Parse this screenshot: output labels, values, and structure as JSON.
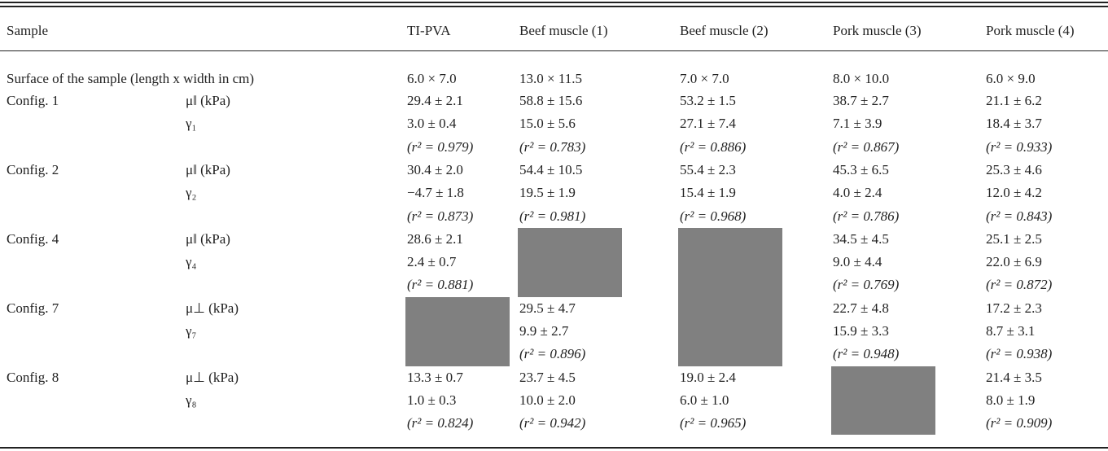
{
  "table": {
    "header": [
      "Sample",
      "TI-PVA",
      "Beef muscle (1)",
      "Beef muscle (2)",
      "Pork muscle (3)",
      "Pork muscle (4)"
    ],
    "surface": {
      "label": "Surface of the sample (length x width in cm)",
      "values": [
        "6.0 × 7.0",
        "13.0 × 11.5",
        "7.0 × 7.0",
        "8.0 × 10.0",
        "6.0 × 9.0"
      ]
    },
    "configs": [
      {
        "label": "Config. 1",
        "params": [
          "μ‖ (kPa)",
          "γ₁"
        ],
        "cells": [
          {
            "mu": "29.4 ± 2.1",
            "gamma": "3.0 ± 0.4",
            "r2": "(r² = 0.979)"
          },
          {
            "mu": "58.8 ± 15.6",
            "gamma": "15.0 ± 5.6",
            "r2": "(r² = 0.783)"
          },
          {
            "mu": "53.2 ± 1.5",
            "gamma": "27.1 ± 7.4",
            "r2": "(r² = 0.886)"
          },
          {
            "mu": "38.7 ± 2.7",
            "gamma": "7.1 ± 3.9",
            "r2": "(r² = 0.867)"
          },
          {
            "mu": "21.1 ± 6.2",
            "gamma": "18.4 ± 3.7",
            "r2": "(r² = 0.933)"
          }
        ]
      },
      {
        "label": "Config. 2",
        "params": [
          "μ‖ (kPa)",
          "γ₂"
        ],
        "cells": [
          {
            "mu": "30.4 ± 2.0",
            "gamma": "−4.7 ± 1.8",
            "r2": "(r² = 0.873)"
          },
          {
            "mu": "54.4 ± 10.5",
            "gamma": "19.5 ± 1.9",
            "r2": "(r² = 0.981)"
          },
          {
            "mu": "55.4 ± 2.3",
            "gamma": "15.4 ± 1.9",
            "r2": "(r² = 0.968)"
          },
          {
            "mu": "45.3 ± 6.5",
            "gamma": "4.0 ± 2.4",
            "r2": "(r² = 0.786)"
          },
          {
            "mu": "25.3 ± 4.6",
            "gamma": "12.0 ± 4.2",
            "r2": "(r² = 0.843)"
          }
        ]
      },
      {
        "label": "Config. 4",
        "params": [
          "μ‖ (kPa)",
          "γ₄"
        ],
        "cells": [
          {
            "mu": "28.6 ± 2.1",
            "gamma": "2.4 ± 0.7",
            "r2": "(r² = 0.881)"
          },
          null,
          null,
          {
            "mu": "34.5 ± 4.5",
            "gamma": "9.0 ± 4.4",
            "r2": "(r² = 0.769)"
          },
          {
            "mu": "25.1 ± 2.5",
            "gamma": "22.0 ± 6.9",
            "r2": "(r² = 0.872)"
          }
        ]
      },
      {
        "label": "Config. 7",
        "params": [
          "μ⊥ (kPa)",
          "γ₇"
        ],
        "cells": [
          null,
          {
            "mu": "29.5 ± 4.7",
            "gamma": "9.9 ± 2.7",
            "r2": "(r² = 0.896)"
          },
          null,
          {
            "mu": "22.7 ± 4.8",
            "gamma": "15.9 ± 3.3",
            "r2": "(r² = 0.948)"
          },
          {
            "mu": "17.2 ± 2.3",
            "gamma": "8.7 ± 3.1",
            "r2": "(r² = 0.938)"
          }
        ]
      },
      {
        "label": "Config. 8",
        "params": [
          "μ⊥ (kPa)",
          "γ₈"
        ],
        "cells": [
          {
            "mu": "13.3 ± 0.7",
            "gamma": "1.0 ± 0.3",
            "r2": "(r² = 0.824)"
          },
          {
            "mu": "23.7 ± 4.5",
            "gamma": "10.0 ± 2.0",
            "r2": "(r² = 0.942)"
          },
          {
            "mu": "19.0 ± 2.4",
            "gamma": "6.0 ± 1.0",
            "r2": "(r² = 0.965)"
          },
          null,
          {
            "mu": "21.4 ± 3.5",
            "gamma": "8.0 ± 1.9",
            "r2": "(r² = 0.909)"
          }
        ]
      }
    ]
  }
}
